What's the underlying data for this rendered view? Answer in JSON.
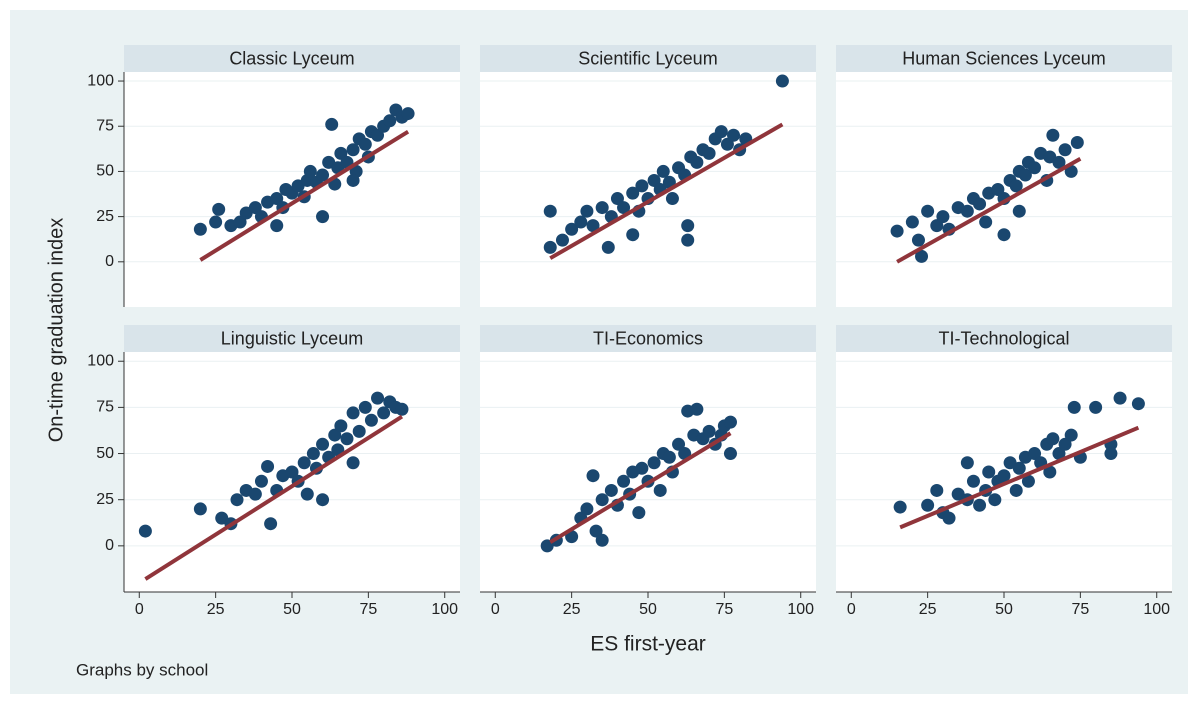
{
  "figure": {
    "ylabel": "On-time graduation index",
    "xlabel": "ES first-year",
    "note": "Graphs by school"
  },
  "chart_data": [
    {
      "type": "scatter",
      "title": "Classic Lyceum",
      "color": "#1a476f",
      "x": [
        20,
        25,
        26,
        30,
        33,
        35,
        38,
        40,
        42,
        45,
        47,
        48,
        50,
        52,
        54,
        55,
        56,
        58,
        60,
        62,
        63,
        64,
        65,
        66,
        68,
        70,
        71,
        72,
        74,
        75,
        76,
        78,
        80,
        82,
        84,
        86,
        88,
        60,
        45,
        70
      ],
      "y": [
        18,
        22,
        29,
        20,
        22,
        27,
        30,
        25,
        33,
        35,
        30,
        40,
        38,
        42,
        36,
        45,
        50,
        44,
        48,
        55,
        76,
        43,
        52,
        60,
        55,
        62,
        50,
        68,
        65,
        58,
        72,
        70,
        75,
        78,
        84,
        80,
        82,
        25,
        20,
        45
      ],
      "fit": {
        "x": [
          20,
          88
        ],
        "y": [
          1,
          72
        ],
        "color": "#90353b"
      },
      "xlim": [
        -5,
        105
      ],
      "ylim": [
        -25,
        105
      ],
      "yticks": [
        0,
        25,
        50,
        75,
        100
      ]
    },
    {
      "type": "scatter",
      "title": "Scientific Lyceum",
      "color": "#1a476f",
      "x": [
        18,
        18,
        22,
        25,
        28,
        30,
        32,
        35,
        38,
        40,
        42,
        45,
        47,
        48,
        50,
        52,
        54,
        55,
        57,
        58,
        60,
        62,
        63,
        63,
        64,
        66,
        68,
        70,
        72,
        74,
        76,
        78,
        80,
        82,
        94,
        37,
        45
      ],
      "y": [
        8,
        28,
        12,
        18,
        22,
        28,
        20,
        30,
        25,
        35,
        30,
        38,
        28,
        42,
        35,
        45,
        40,
        50,
        44,
        35,
        52,
        48,
        12,
        20,
        58,
        55,
        62,
        60,
        68,
        72,
        65,
        70,
        62,
        68,
        100,
        8,
        15
      ],
      "fit": {
        "x": [
          18,
          94
        ],
        "y": [
          2,
          76
        ],
        "color": "#90353b"
      },
      "xlim": [
        -5,
        105
      ],
      "ylim": [
        -25,
        105
      ],
      "yticks": [
        0,
        25,
        50,
        75,
        100
      ]
    },
    {
      "type": "scatter",
      "title": "Human Sciences Lyceum",
      "color": "#1a476f",
      "x": [
        15,
        20,
        22,
        23,
        25,
        28,
        30,
        32,
        35,
        38,
        40,
        42,
        44,
        45,
        48,
        50,
        52,
        54,
        55,
        57,
        58,
        60,
        62,
        64,
        65,
        66,
        68,
        70,
        72,
        74,
        50,
        55
      ],
      "y": [
        17,
        22,
        12,
        3,
        28,
        20,
        25,
        18,
        30,
        28,
        35,
        32,
        22,
        38,
        40,
        35,
        45,
        42,
        50,
        48,
        55,
        52,
        60,
        45,
        58,
        70,
        55,
        62,
        50,
        66,
        15,
        28
      ],
      "fit": {
        "x": [
          15,
          75
        ],
        "y": [
          0,
          57
        ],
        "color": "#90353b"
      },
      "xlim": [
        -5,
        105
      ],
      "ylim": [
        -25,
        105
      ],
      "yticks": [
        0,
        25,
        50,
        75,
        100
      ]
    },
    {
      "type": "scatter",
      "title": "Linguistic Lyceum",
      "color": "#1a476f",
      "x": [
        2,
        20,
        27,
        30,
        32,
        35,
        38,
        40,
        42,
        43,
        45,
        47,
        50,
        52,
        54,
        55,
        57,
        58,
        60,
        62,
        64,
        65,
        66,
        68,
        70,
        72,
        74,
        76,
        78,
        80,
        82,
        84,
        86,
        60,
        70
      ],
      "y": [
        8,
        20,
        15,
        12,
        25,
        30,
        28,
        35,
        43,
        12,
        30,
        38,
        40,
        35,
        45,
        28,
        50,
        42,
        55,
        48,
        60,
        52,
        65,
        58,
        72,
        62,
        75,
        68,
        80,
        72,
        78,
        75,
        74,
        25,
        45
      ],
      "fit": {
        "x": [
          2,
          86
        ],
        "y": [
          -18,
          70
        ],
        "color": "#90353b"
      },
      "xlim": [
        -5,
        105
      ],
      "ylim": [
        -25,
        105
      ],
      "yticks": [
        0,
        25,
        50,
        75,
        100
      ],
      "xticks": [
        0,
        25,
        50,
        75,
        100
      ]
    },
    {
      "type": "scatter",
      "title": "TI-Economics",
      "color": "#1a476f",
      "x": [
        17,
        20,
        25,
        28,
        30,
        32,
        33,
        35,
        38,
        40,
        42,
        44,
        45,
        47,
        48,
        50,
        52,
        54,
        55,
        57,
        58,
        60,
        62,
        63,
        65,
        66,
        68,
        70,
        72,
        74,
        75,
        77,
        77,
        35
      ],
      "y": [
        0,
        3,
        5,
        15,
        20,
        38,
        8,
        25,
        30,
        22,
        35,
        28,
        40,
        18,
        42,
        35,
        45,
        30,
        50,
        48,
        40,
        55,
        50,
        73,
        60,
        74,
        58,
        62,
        55,
        60,
        65,
        50,
        67,
        3
      ],
      "fit": {
        "x": [
          18,
          77
        ],
        "y": [
          2,
          61
        ],
        "color": "#90353b"
      },
      "xlim": [
        -5,
        105
      ],
      "ylim": [
        -25,
        105
      ],
      "yticks": [
        0,
        25,
        50,
        75,
        100
      ],
      "xticks": [
        0,
        25,
        50,
        75,
        100
      ]
    },
    {
      "type": "scatter",
      "title": "TI-Technological",
      "color": "#1a476f",
      "x": [
        16,
        25,
        28,
        30,
        32,
        35,
        38,
        40,
        42,
        44,
        45,
        47,
        48,
        50,
        52,
        54,
        55,
        57,
        58,
        60,
        62,
        64,
        65,
        66,
        68,
        70,
        72,
        73,
        75,
        80,
        85,
        85,
        88,
        94,
        38
      ],
      "y": [
        21,
        22,
        30,
        18,
        15,
        28,
        25,
        35,
        22,
        30,
        40,
        25,
        35,
        38,
        45,
        30,
        42,
        48,
        35,
        50,
        45,
        55,
        40,
        58,
        50,
        55,
        60,
        75,
        48,
        75,
        55,
        50,
        80,
        77,
        45
      ],
      "fit": {
        "x": [
          16,
          94
        ],
        "y": [
          10,
          64
        ],
        "color": "#90353b"
      },
      "xlim": [
        -5,
        105
      ],
      "ylim": [
        -25,
        105
      ],
      "yticks": [
        0,
        25,
        50,
        75,
        100
      ],
      "xticks": [
        0,
        25,
        50,
        75,
        100
      ]
    }
  ]
}
